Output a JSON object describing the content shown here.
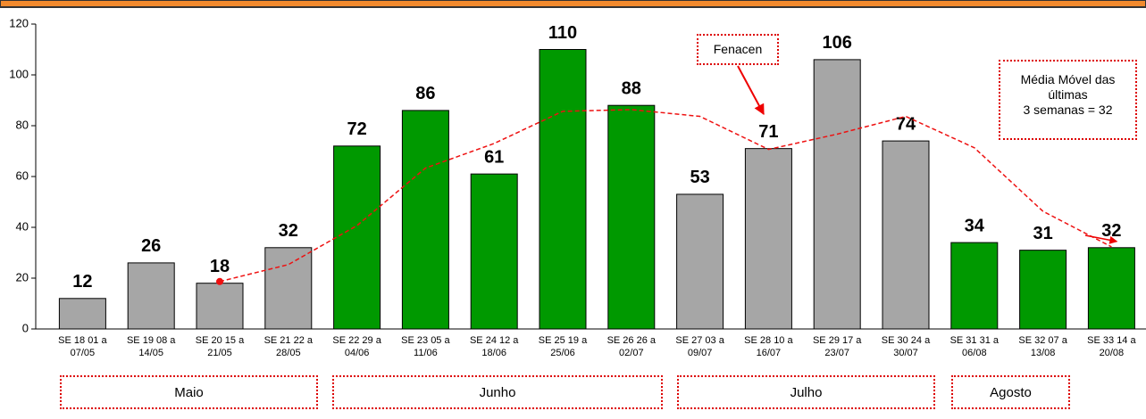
{
  "chart_data": {
    "type": "bar",
    "categories": [
      "SE 18 01 a 07/05",
      "SE 19 08 a 14/05",
      "SE 20 15 a 21/05",
      "SE 21 22 a 28/05",
      "SE 22 29 a 04/06",
      "SE 23 05 a 11/06",
      "SE 24 12 a 18/06",
      "SE 25 19 a 25/06",
      "SE 26 26 a 02/07",
      "SE 27 03 a 09/07",
      "SE 28 10 a 16/07",
      "SE 29 17 a 23/07",
      "SE 30 24 a 30/07",
      "SE 31 31 a 06/08",
      "SE 32 07 a 13/08",
      "SE 33 14 a 20/08"
    ],
    "values": [
      12,
      26,
      18,
      32,
      72,
      86,
      61,
      110,
      88,
      53,
      71,
      106,
      74,
      34,
      31,
      32
    ],
    "colors": [
      "#a6a6a6",
      "#a6a6a6",
      "#a6a6a6",
      "#a6a6a6",
      "#009900",
      "#009900",
      "#009900",
      "#009900",
      "#009900",
      "#a6a6a6",
      "#a6a6a6",
      "#a6a6a6",
      "#a6a6a6",
      "#009900",
      "#009900",
      "#009900"
    ],
    "moving_average": {
      "color": "#ee1111",
      "values": [
        null,
        null,
        18.67,
        25.33,
        40.67,
        63.33,
        73,
        85.67,
        86.33,
        83.67,
        70.67,
        76.67,
        83.67,
        71.33,
        46.33,
        32.33
      ]
    },
    "ylim": [
      0,
      120
    ],
    "yticks": [
      0,
      20,
      40,
      60,
      80,
      100,
      120
    ],
    "month_labels": [
      "Maio",
      "Junho",
      "Julho",
      "Agosto"
    ],
    "annotations": {
      "fenacen": "Fenacen",
      "moving_average_note": [
        "Média Móvel das",
        "últimas",
        "3 semanas  = 32"
      ]
    }
  }
}
